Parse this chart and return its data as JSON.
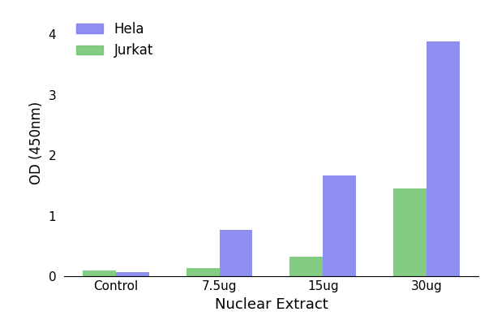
{
  "categories": [
    "Control",
    "7.5ug",
    "15ug",
    "30ug"
  ],
  "hela_values": [
    0.07,
    0.77,
    1.67,
    3.88
  ],
  "jurkat_values": [
    0.09,
    0.14,
    0.32,
    1.45
  ],
  "hela_color": "#7b7bef",
  "jurkat_color": "#6ec46e",
  "hela_label": "Hela",
  "jurkat_label": "Jurkat",
  "xlabel": "Nuclear Extract",
  "ylabel": "OD (450nm)",
  "ylim": [
    0,
    4.4
  ],
  "yticks": [
    0,
    1,
    2,
    3,
    4
  ],
  "bar_width": 0.32,
  "background_color": "#ffffff",
  "figsize": [
    6.08,
    4.05
  ],
  "dpi": 100
}
